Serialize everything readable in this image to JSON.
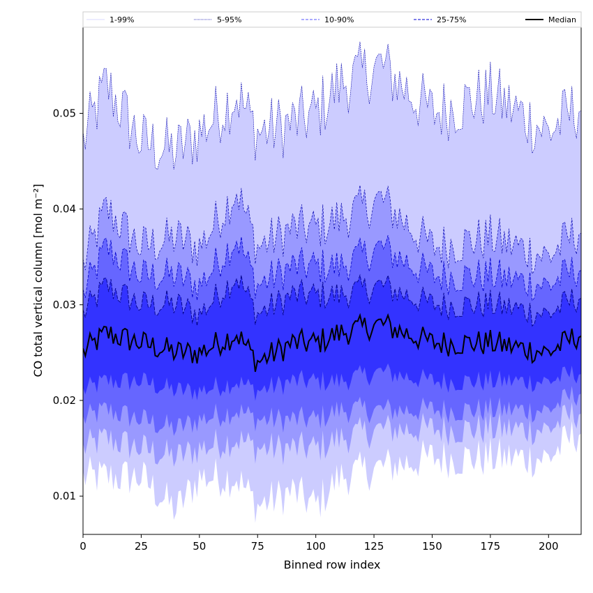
{
  "chart_data": {
    "type": "area",
    "title": "",
    "xlabel": "Binned row index",
    "ylabel": "CO total vertical column [mol m⁻²]",
    "xlim": [
      0,
      214
    ],
    "ylim": [
      0.006,
      0.059
    ],
    "x_ticks": [
      0,
      25,
      50,
      75,
      100,
      125,
      150,
      175,
      200
    ],
    "y_ticks": [
      0.01,
      0.02,
      0.03,
      0.04,
      0.05
    ],
    "y_tick_labels": [
      "0.01",
      "0.02",
      "0.03",
      "0.04",
      "0.05"
    ],
    "legend_position": "top (horizontal strip above plot)",
    "colors": {
      "band_1_99": "#ccccff",
      "band_5_95": "#9999ff",
      "band_10_90": "#6666ff",
      "band_25_75": "#3333ff",
      "line_5_95": "#0000aa",
      "line_10_90": "#0000cc",
      "line_25_75": "#000088",
      "median": "#000000"
    },
    "legend": [
      {
        "label": "1-99%",
        "color": "#ccccff",
        "style": "solid-thin"
      },
      {
        "label": "5-95%",
        "color": "#0000aa",
        "style": "dotted"
      },
      {
        "label": "10-90%",
        "color": "#7777ff",
        "style": "dashed"
      },
      {
        "label": "25-75%",
        "color": "#3333dd",
        "style": "dashed"
      },
      {
        "label": "Median",
        "color": "#000000",
        "style": "solid-thick"
      }
    ],
    "series_summary": [
      {
        "name": "99th percentile (upper 1-99%)",
        "x": [
          0,
          10,
          25,
          40,
          50,
          66,
          75,
          90,
          100,
          110,
          128,
          150,
          175,
          200,
          214
        ],
        "values": [
          0.047,
          0.053,
          0.047,
          0.046,
          0.048,
          0.052,
          0.048,
          0.049,
          0.05,
          0.053,
          0.055,
          0.05,
          0.052,
          0.048,
          0.051
        ]
      },
      {
        "name": "95th percentile (upper 5-95%)",
        "x": [
          0,
          10,
          25,
          40,
          50,
          66,
          75,
          90,
          100,
          110,
          128,
          150,
          175,
          200,
          214
        ],
        "values": [
          0.034,
          0.04,
          0.036,
          0.037,
          0.036,
          0.042,
          0.036,
          0.038,
          0.038,
          0.039,
          0.041,
          0.036,
          0.037,
          0.035,
          0.038
        ]
      },
      {
        "name": "90th percentile (upper 10-90%)",
        "x": [
          0,
          10,
          25,
          40,
          50,
          66,
          75,
          90,
          100,
          110,
          128,
          150,
          175,
          200,
          214
        ],
        "values": [
          0.031,
          0.036,
          0.033,
          0.033,
          0.032,
          0.037,
          0.032,
          0.034,
          0.034,
          0.034,
          0.036,
          0.033,
          0.033,
          0.032,
          0.034
        ]
      },
      {
        "name": "75th percentile (upper 25-75%)",
        "x": [
          0,
          10,
          25,
          40,
          50,
          66,
          75,
          90,
          100,
          110,
          128,
          150,
          175,
          200,
          214
        ],
        "values": [
          0.029,
          0.032,
          0.03,
          0.03,
          0.029,
          0.033,
          0.029,
          0.031,
          0.031,
          0.031,
          0.032,
          0.03,
          0.03,
          0.029,
          0.031
        ]
      },
      {
        "name": "Median",
        "x": [
          0,
          10,
          25,
          40,
          50,
          66,
          75,
          90,
          100,
          110,
          128,
          150,
          175,
          200,
          214
        ],
        "values": [
          0.025,
          0.027,
          0.026,
          0.025,
          0.025,
          0.027,
          0.024,
          0.026,
          0.026,
          0.027,
          0.028,
          0.026,
          0.026,
          0.025,
          0.027
        ]
      },
      {
        "name": "25th percentile (lower 25-75%)",
        "x": [
          0,
          10,
          25,
          40,
          50,
          66,
          75,
          90,
          100,
          110,
          128,
          150,
          175,
          200,
          214
        ],
        "values": [
          0.021,
          0.022,
          0.022,
          0.021,
          0.021,
          0.022,
          0.021,
          0.022,
          0.022,
          0.022,
          0.023,
          0.022,
          0.022,
          0.022,
          0.023
        ]
      },
      {
        "name": "10th percentile (lower 10-90%)",
        "x": [
          0,
          10,
          25,
          40,
          50,
          66,
          75,
          90,
          100,
          110,
          128,
          150,
          175,
          200,
          214
        ],
        "values": [
          0.018,
          0.019,
          0.018,
          0.017,
          0.018,
          0.019,
          0.018,
          0.018,
          0.018,
          0.019,
          0.019,
          0.019,
          0.019,
          0.019,
          0.021
        ]
      },
      {
        "name": "5th percentile (lower 5-95%)",
        "x": [
          0,
          10,
          25,
          40,
          50,
          66,
          75,
          90,
          100,
          110,
          128,
          150,
          175,
          200,
          214
        ],
        "values": [
          0.015,
          0.016,
          0.015,
          0.014,
          0.015,
          0.016,
          0.015,
          0.015,
          0.015,
          0.016,
          0.017,
          0.017,
          0.017,
          0.017,
          0.019
        ]
      },
      {
        "name": "1st percentile (lower 1-99%)",
        "x": [
          0,
          10,
          25,
          40,
          50,
          66,
          75,
          90,
          100,
          110,
          128,
          150,
          175,
          200,
          214
        ],
        "values": [
          0.012,
          0.012,
          0.012,
          0.0085,
          0.012,
          0.012,
          0.009,
          0.0105,
          0.009,
          0.012,
          0.013,
          0.014,
          0.014,
          0.014,
          0.017
        ]
      }
    ]
  }
}
